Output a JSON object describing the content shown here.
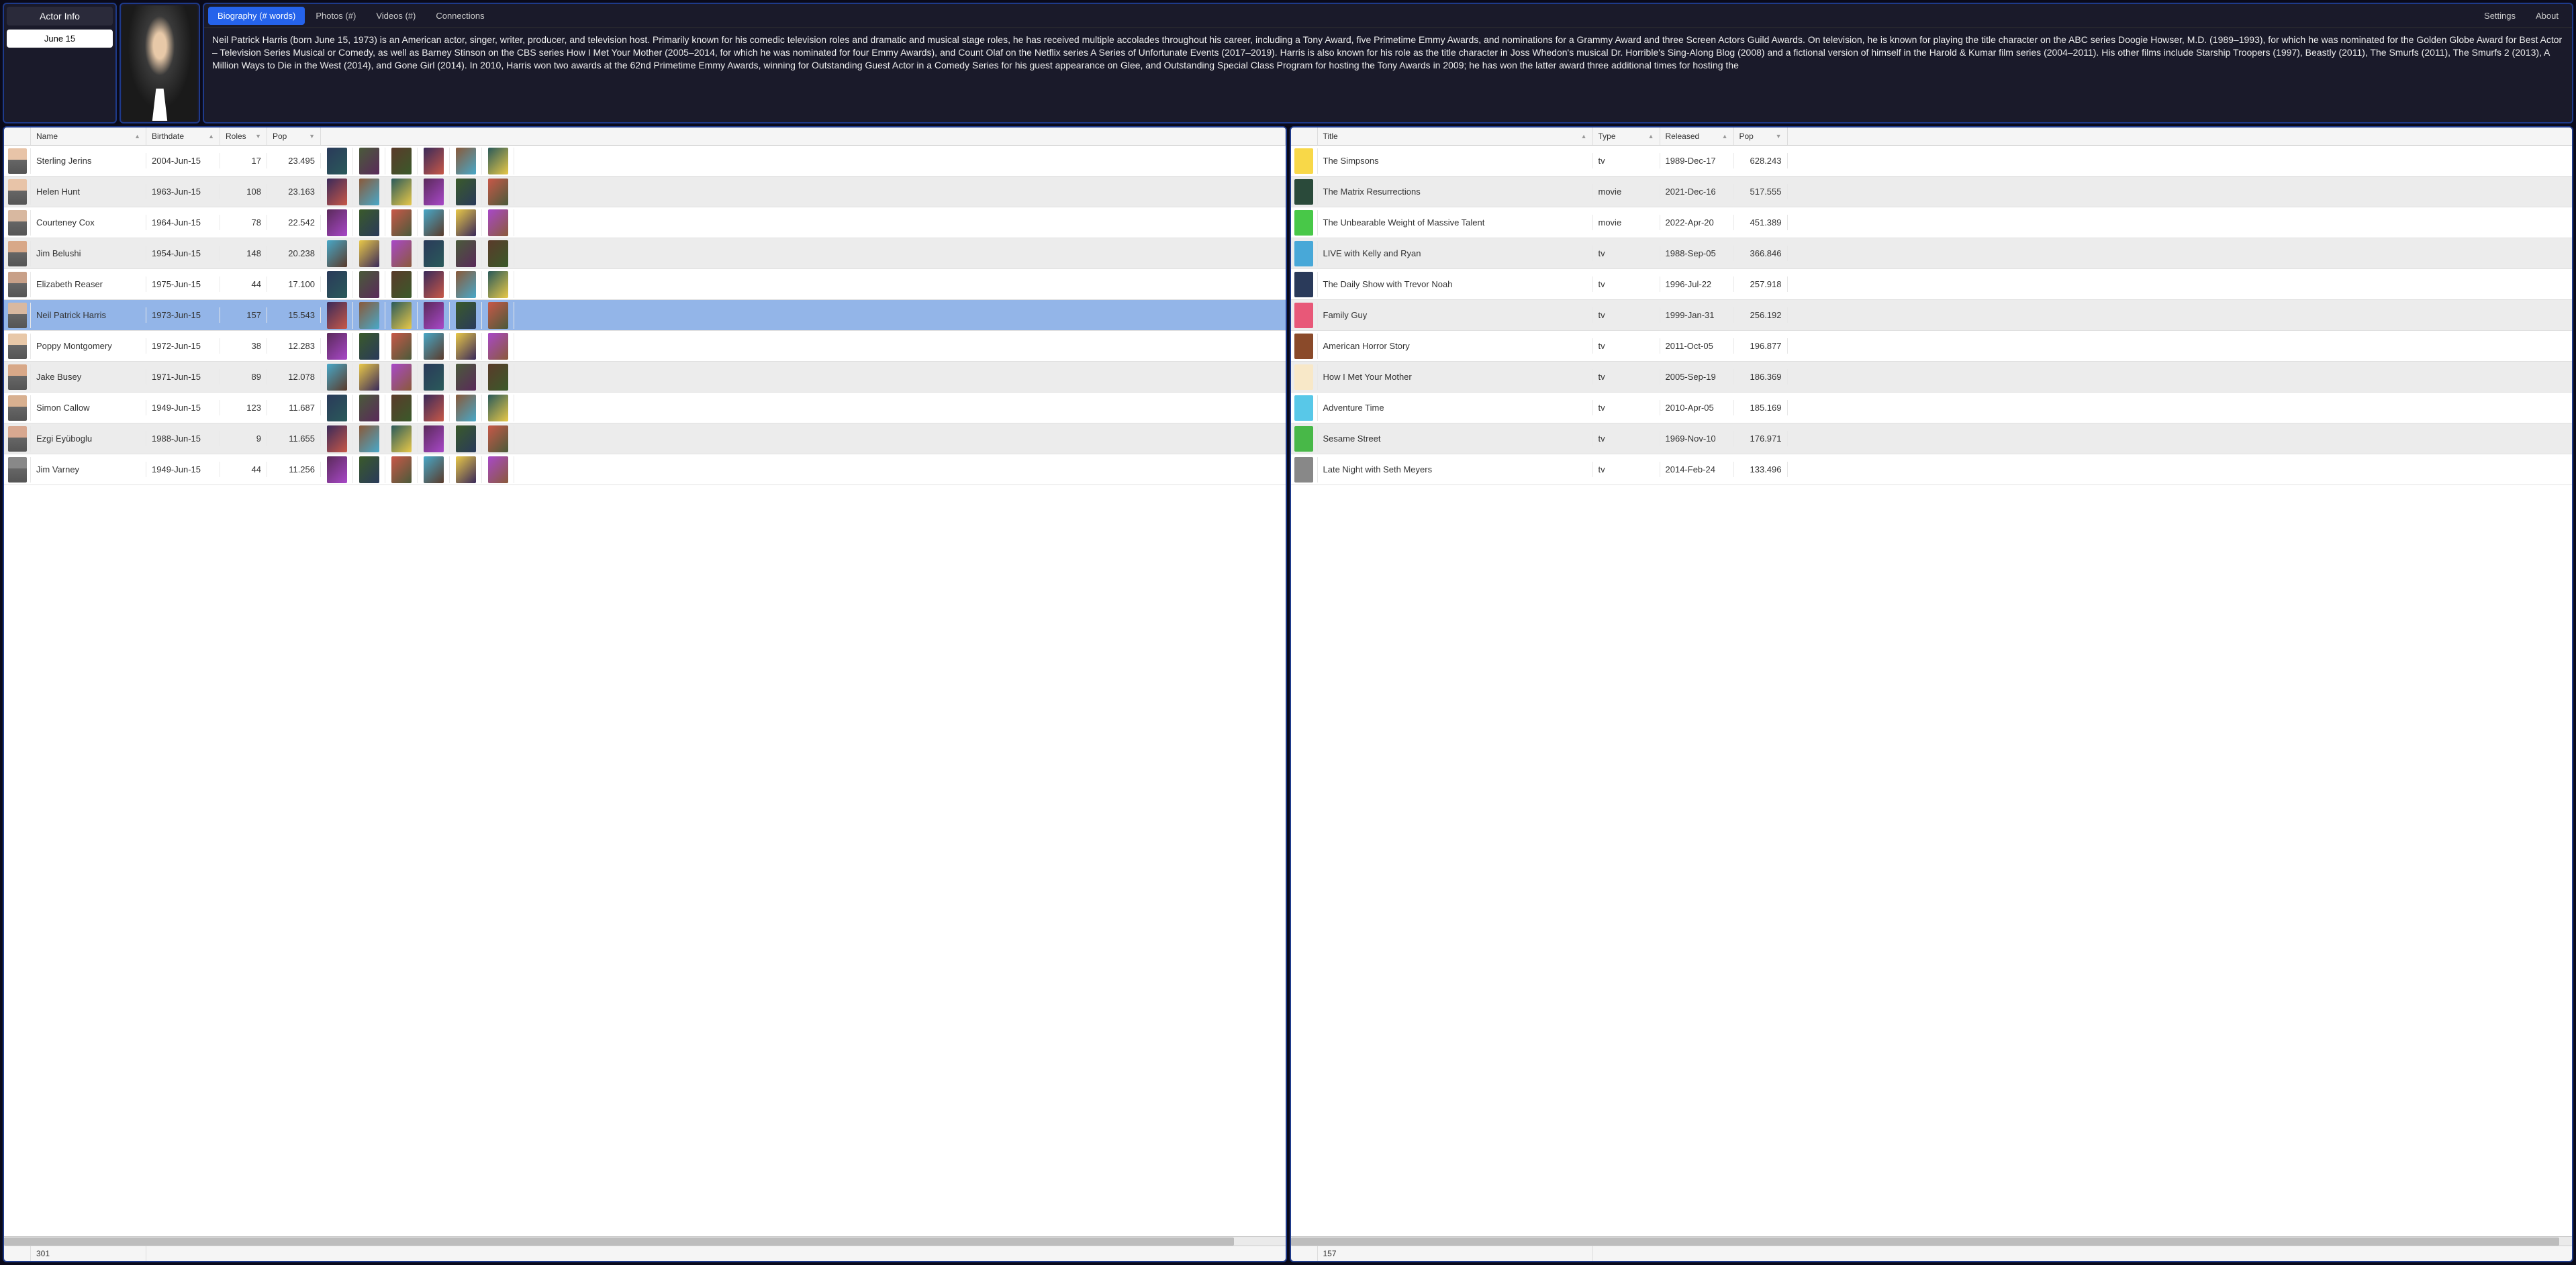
{
  "header": {
    "actor_info_title": "Actor Info",
    "date_value": "June 15",
    "tabs": {
      "biography": "Biography (# words)",
      "photos": "Photos (#)",
      "videos": "Videos (#)",
      "connections": "Connections"
    },
    "settings": "Settings",
    "about": "About"
  },
  "biography_text": "Neil Patrick Harris (born June 15, 1973) is an American actor, singer, writer, producer, and television host. Primarily known for his comedic television roles and dramatic and musical stage roles, he has received multiple accolades throughout his career, including a Tony Award, five Primetime Emmy Awards, and nominations for a Grammy Award and three Screen Actors Guild Awards. On television, he is known for playing the title character on the ABC series Doogie Howser, M.D. (1989–1993), for which he was nominated for the Golden Globe Award for Best Actor – Television Series Musical or Comedy, as well as Barney Stinson on the CBS series How I Met Your Mother (2005–2014, for which he was nominated for four Emmy Awards), and Count Olaf on the Netflix series A Series of Unfortunate Events (2017–2019). Harris is also known for his role as the title character in Joss Whedon's musical Dr. Horrible's Sing-Along Blog (2008) and a fictional version of himself in the Harold & Kumar film series (2004–2011). His other films include Starship Troopers (1997), Beastly (2011), The Smurfs (2011), The Smurfs 2 (2013), A Million Ways to Die in the West (2014), and Gone Girl (2014). In 2010, Harris won two awards at the 62nd Primetime Emmy Awards, winning for Outstanding Guest Actor in a Comedy Series for his guest appearance on Glee, and Outstanding Special Class Program for hosting the Tony Awards in 2009; he has won the latter award three additional times for hosting the",
  "left_grid": {
    "columns": {
      "name": "Name",
      "birthdate": "Birthdate",
      "roles": "Roles",
      "pop": "Pop"
    },
    "footer_count": "301",
    "selected_index": 5,
    "poster_columns": 6,
    "rows": [
      {
        "name": "Sterling Jerins",
        "birthdate": "2004-Jun-15",
        "roles": 17,
        "pop": "23.495",
        "thumb": "#e8c4a8"
      },
      {
        "name": "Helen Hunt",
        "birthdate": "1963-Jun-15",
        "roles": 108,
        "pop": "23.163",
        "thumb": "#e8c4a8"
      },
      {
        "name": "Courteney Cox",
        "birthdate": "1964-Jun-15",
        "roles": 78,
        "pop": "22.542",
        "thumb": "#d8b8a0"
      },
      {
        "name": "Jim Belushi",
        "birthdate": "1954-Jun-15",
        "roles": 148,
        "pop": "20.238",
        "thumb": "#d8a888"
      },
      {
        "name": "Elizabeth Reaser",
        "birthdate": "1975-Jun-15",
        "roles": 44,
        "pop": "17.100",
        "thumb": "#c8a088"
      },
      {
        "name": "Neil Patrick Harris",
        "birthdate": "1973-Jun-15",
        "roles": 157,
        "pop": "15.543",
        "thumb": "#d8b8a0"
      },
      {
        "name": "Poppy Montgomery",
        "birthdate": "1972-Jun-15",
        "roles": 38,
        "pop": "12.283",
        "thumb": "#e8c8a8"
      },
      {
        "name": "Jake Busey",
        "birthdate": "1971-Jun-15",
        "roles": 89,
        "pop": "12.078",
        "thumb": "#d8a888"
      },
      {
        "name": "Simon Callow",
        "birthdate": "1949-Jun-15",
        "roles": 123,
        "pop": "11.687",
        "thumb": "#d8b090"
      },
      {
        "name": "Ezgi Eyüboglu",
        "birthdate": "1988-Jun-15",
        "roles": 9,
        "pop": "11.655",
        "thumb": "#d8a890"
      },
      {
        "name": "Jim Varney",
        "birthdate": "1949-Jun-15",
        "roles": 44,
        "pop": "11.256",
        "thumb": "#888888"
      }
    ]
  },
  "right_grid": {
    "columns": {
      "title": "Title",
      "type": "Type",
      "released": "Released",
      "pop": "Pop"
    },
    "footer_count": "157",
    "rows": [
      {
        "title": "The Simpsons",
        "type": "tv",
        "released": "1989-Dec-17",
        "pop": "628.243",
        "thumb": "#f8d848"
      },
      {
        "title": "The Matrix Resurrections",
        "type": "movie",
        "released": "2021-Dec-16",
        "pop": "517.555",
        "thumb": "#2a4a3a"
      },
      {
        "title": "The Unbearable Weight of Massive Talent",
        "type": "movie",
        "released": "2022-Apr-20",
        "pop": "451.389",
        "thumb": "#48c848"
      },
      {
        "title": "LIVE with Kelly and Ryan",
        "type": "tv",
        "released": "1988-Sep-05",
        "pop": "366.846",
        "thumb": "#48a8d8"
      },
      {
        "title": "The Daily Show with Trevor Noah",
        "type": "tv",
        "released": "1996-Jul-22",
        "pop": "257.918",
        "thumb": "#2a3a5a"
      },
      {
        "title": "Family Guy",
        "type": "tv",
        "released": "1999-Jan-31",
        "pop": "256.192",
        "thumb": "#e85878"
      },
      {
        "title": "American Horror Story",
        "type": "tv",
        "released": "2011-Oct-05",
        "pop": "196.877",
        "thumb": "#8a4a2a"
      },
      {
        "title": "How I Met Your Mother",
        "type": "tv",
        "released": "2005-Sep-19",
        "pop": "186.369",
        "thumb": "#f8e8c8"
      },
      {
        "title": "Adventure Time",
        "type": "tv",
        "released": "2010-Apr-05",
        "pop": "185.169",
        "thumb": "#58c8e8"
      },
      {
        "title": "Sesame Street",
        "type": "tv",
        "released": "1969-Nov-10",
        "pop": "176.971",
        "thumb": "#48b848"
      },
      {
        "title": "Late Night with Seth Meyers",
        "type": "tv",
        "released": "2014-Feb-24",
        "pop": "133.496",
        "thumb": "#888888"
      }
    ]
  },
  "poster_palette": [
    "#2a3a5a",
    "#4a5a3a",
    "#5a3a2a",
    "#3a2a5a",
    "#8a5a3a",
    "#2a5a5a",
    "#5a2a5a",
    "#3a5a2a",
    "#c85848",
    "#48a8c8",
    "#e8c848",
    "#a848c8"
  ],
  "styling": {
    "background": "#0a0a1a",
    "panel_border": "#1e3a8a",
    "panel_bg": "#1a1a2a",
    "active_tab_bg": "#2563eb",
    "selected_row_bg": "#93b5e8",
    "row_alt_bg": "#ececec",
    "row_bg": "#ffffff",
    "header_bg": "#f5f5f5",
    "text_light": "#eeeeee",
    "text_dark": "#333333"
  }
}
